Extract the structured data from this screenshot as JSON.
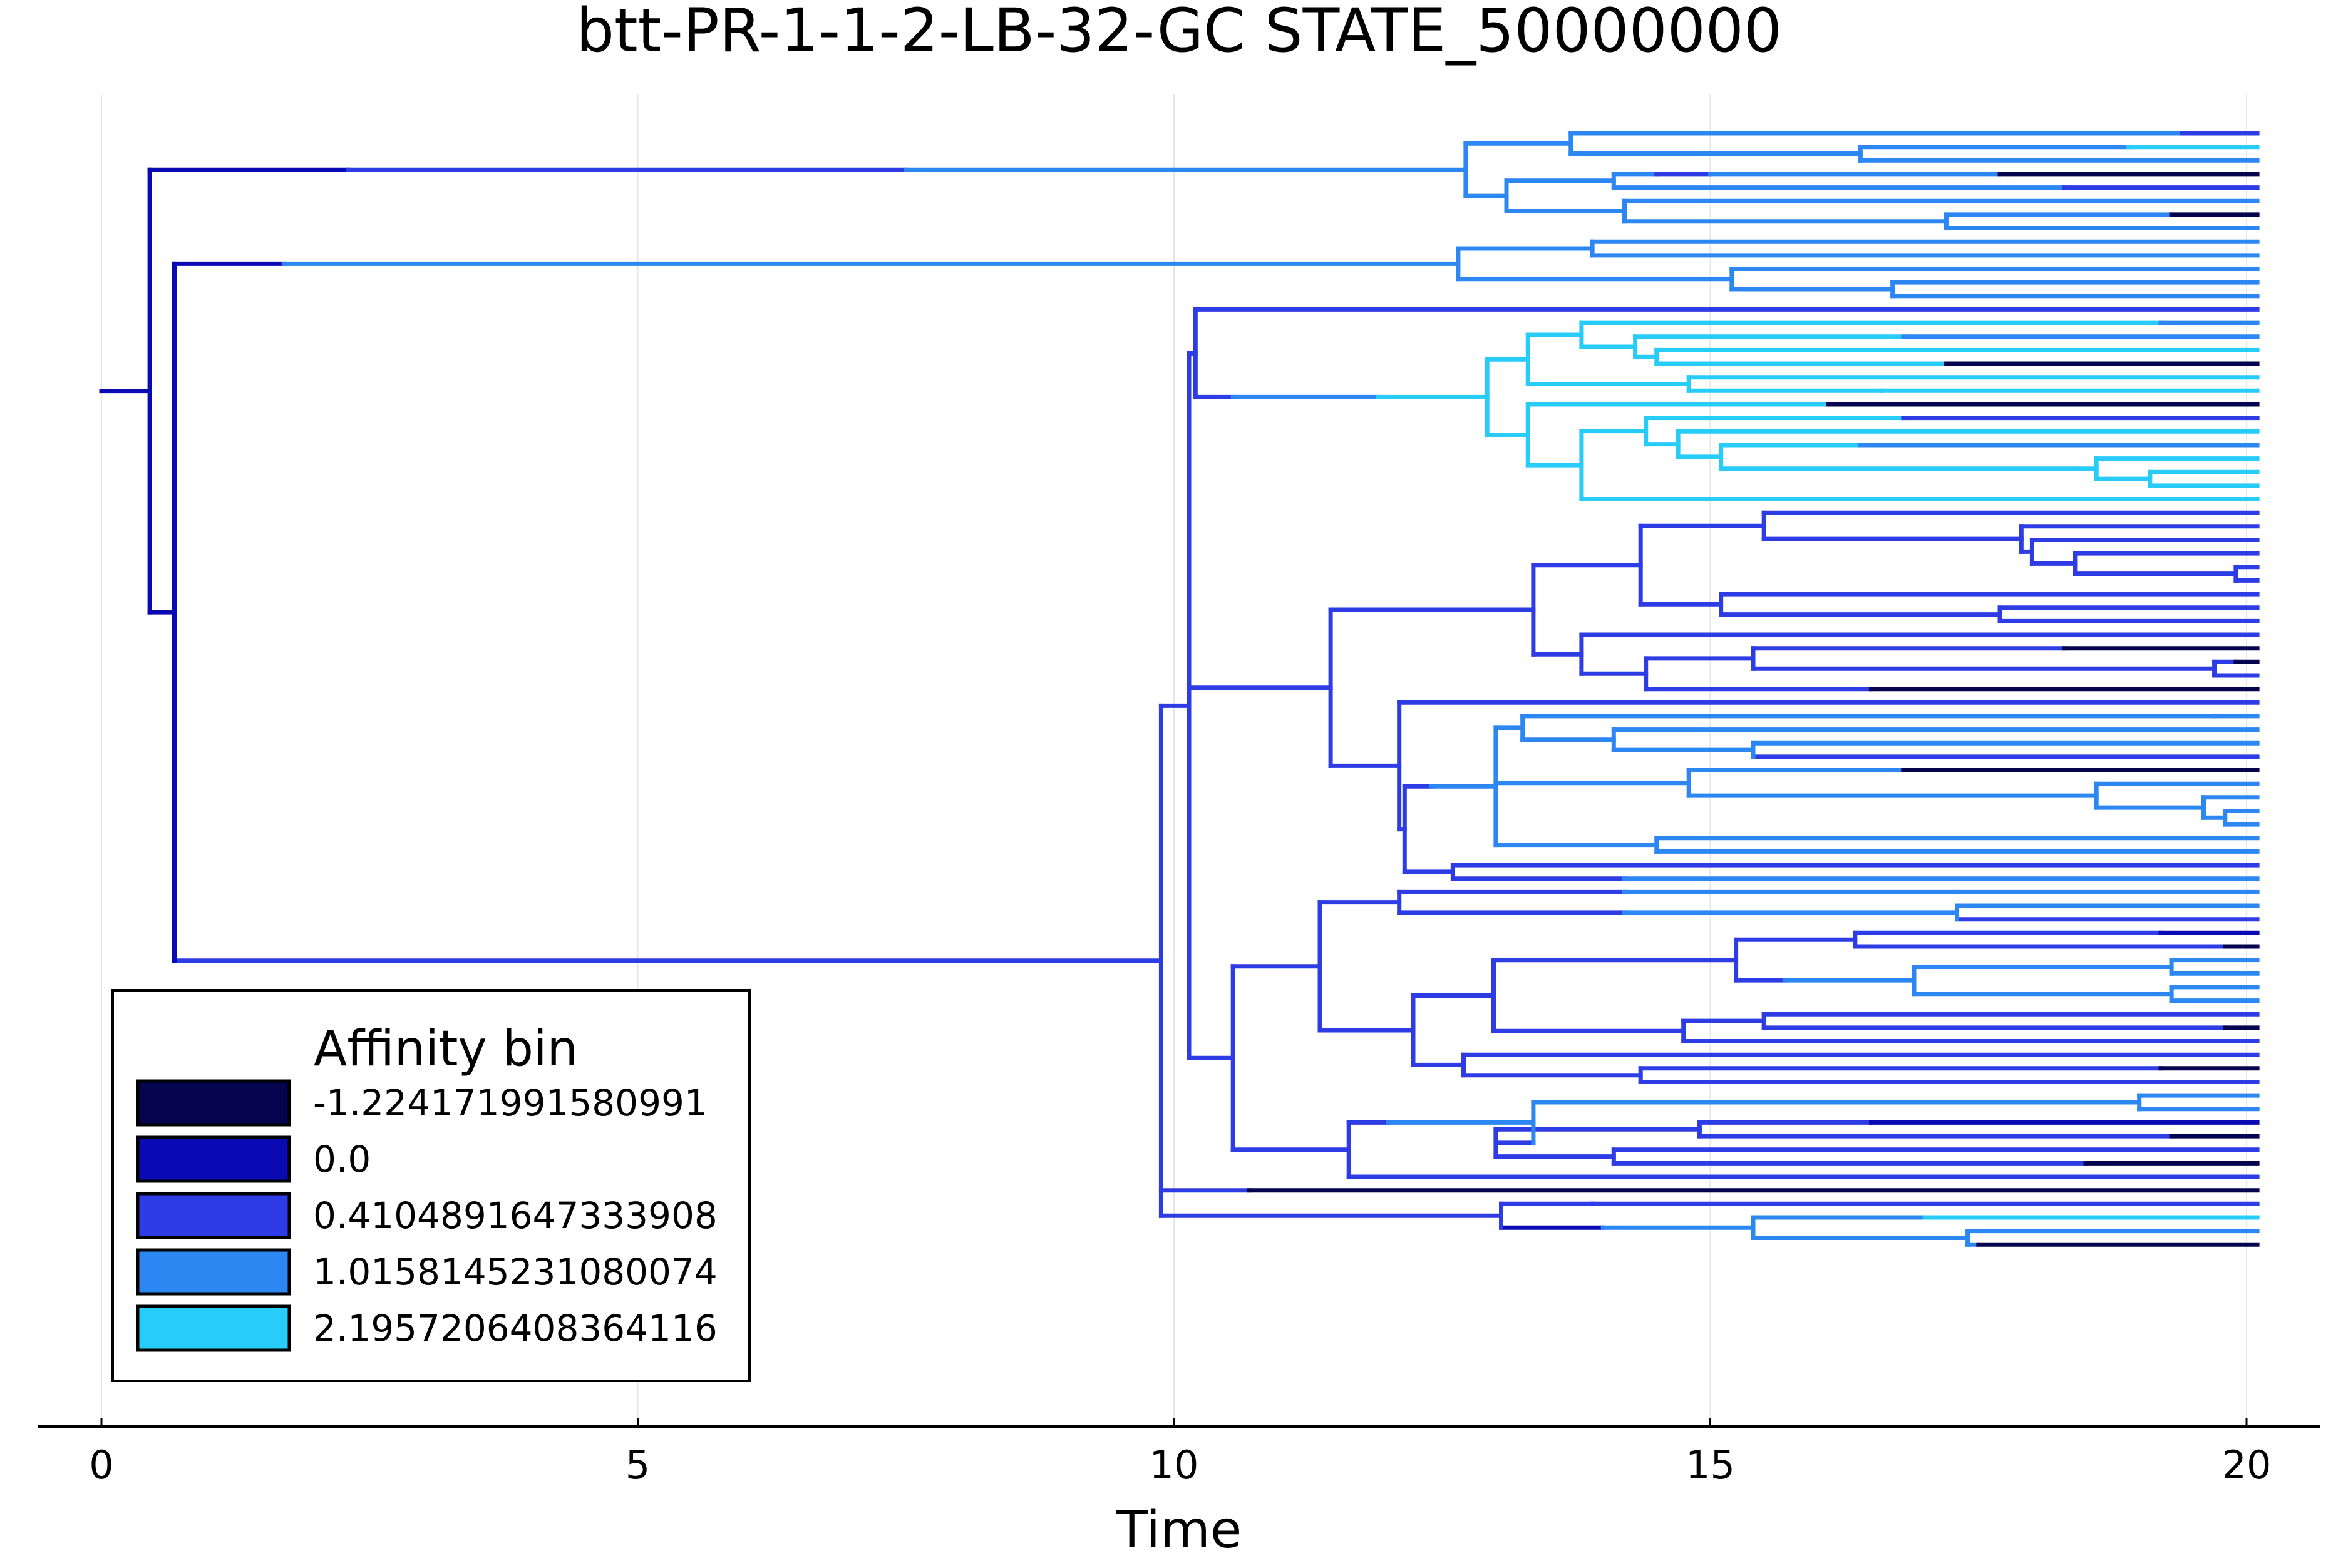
{
  "chart_data": {
    "type": "tree",
    "title": "btt-PR-1-1-2-LB-32-GC STATE_50000000",
    "xlabel": "Time",
    "ylabel": "",
    "xlim": [
      0,
      20
    ],
    "xticks": [
      0,
      5,
      10,
      15,
      20
    ],
    "grid": "vertical",
    "legend": {
      "title": "Affinity bin",
      "placement": "bottom-left",
      "entries": [
        {
          "label": "-1.224171991580991",
          "color": "#04044f"
        },
        {
          "label": "0.0",
          "color": "#0a0ab4"
        },
        {
          "label": "0.4104891647333908",
          "color": "#2e3ce6"
        },
        {
          "label": "1.0158145231080074",
          "color": "#2c87f2"
        },
        {
          "label": "2.1957206408364116",
          "color": "#28ccf8"
        }
      ]
    },
    "n_leaves": 92,
    "branches": [
      {
        "parent": "root",
        "child": "A",
        "t0": 0.0,
        "t1": 0.45,
        "bin": 1
      },
      {
        "parent": "A",
        "child": "B1",
        "t0": 0.45,
        "t1": 12.72,
        "bin": 3
      },
      {
        "parent": "A",
        "child": "B2",
        "t0": 0.45,
        "t1": 0.68,
        "bin": 1
      },
      {
        "parent": "B2",
        "child": "C1",
        "t0": 0.68,
        "t1": 12.65,
        "bin": 3
      },
      {
        "parent": "B2",
        "child": "C2",
        "t0": 0.68,
        "t1": 9.88,
        "bin": 2
      },
      {
        "parent": "C2",
        "child": "D1",
        "t0": 9.88,
        "t1": 10.14,
        "bin": 2
      },
      {
        "parent": "C2",
        "child": "D2",
        "t0": 9.88,
        "t1": 20.1,
        "bin": 0
      },
      {
        "parent": "C2",
        "child": "D3",
        "t0": 9.88,
        "t1": 13.05,
        "bin": 2
      },
      {
        "parent": "D1",
        "child": "E1",
        "t0": 10.14,
        "t1": 10.2,
        "bin": 2
      },
      {
        "parent": "D1",
        "child": "E2",
        "t0": 10.14,
        "t1": 10.55,
        "bin": 2
      },
      {
        "parent": "E1",
        "child": "F1",
        "t0": 10.2,
        "t1": 12.92,
        "bin": 4
      },
      {
        "parent": "E1",
        "child": "F2",
        "t0": 10.2,
        "t1": 11.46,
        "bin": 2
      },
      {
        "parent": "E2",
        "child": "G1",
        "t0": 10.55,
        "t1": 11.36,
        "bin": 2
      },
      {
        "parent": "E2",
        "child": "G2",
        "t0": 10.55,
        "t1": 11.63,
        "bin": 2
      }
    ]
  }
}
